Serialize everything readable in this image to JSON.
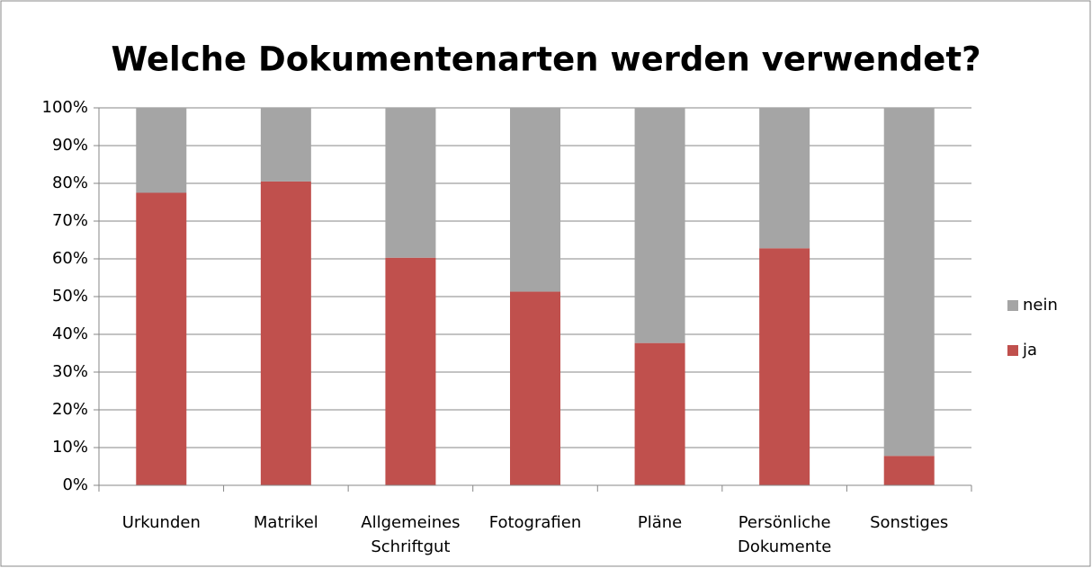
{
  "chart_data": {
    "type": "stacked_bar",
    "title": "Welche Dokumentenarten werden verwendet?",
    "categories": [
      "Urkunden",
      "Matrikel",
      "Allgemeines Schriftgut",
      "Fotografien",
      "Pläne",
      "Persönliche Dokumente",
      "Sonstiges"
    ],
    "series": [
      {
        "name": "ja",
        "color": "#c0504d",
        "values": [
          77.5,
          80.5,
          60.3,
          51.3,
          37.7,
          62.8,
          7.8
        ]
      },
      {
        "name": "nein",
        "color": "#a5a5a5",
        "values": [
          22.5,
          19.5,
          39.7,
          48.7,
          62.3,
          37.2,
          92.2
        ]
      }
    ],
    "ylim": [
      0,
      100
    ],
    "yticks": [
      {
        "value": 0,
        "label": "0%"
      },
      {
        "value": 10,
        "label": "10%"
      },
      {
        "value": 20,
        "label": "20%"
      },
      {
        "value": 30,
        "label": "30%"
      },
      {
        "value": 40,
        "label": "40%"
      },
      {
        "value": 50,
        "label": "50%"
      },
      {
        "value": 60,
        "label": "60%"
      },
      {
        "value": 70,
        "label": "70%"
      },
      {
        "value": 80,
        "label": "80%"
      },
      {
        "value": 90,
        "label": "90%"
      },
      {
        "value": 100,
        "label": "100%"
      }
    ],
    "grid": true,
    "legend": "right"
  }
}
